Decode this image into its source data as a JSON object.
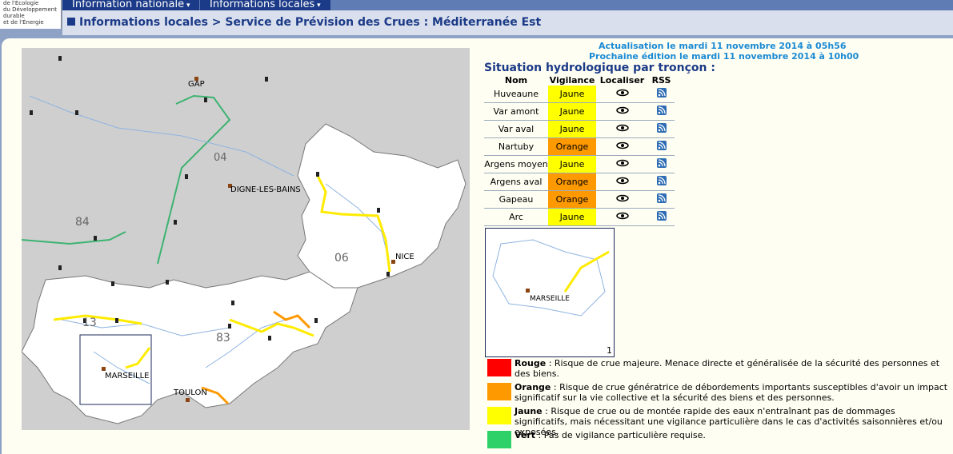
{
  "logo": [
    "de l'Écologie",
    "du Développement",
    "durable",
    "et de l'Énergie"
  ],
  "nav": [
    "Information nationale",
    "Informations locales"
  ],
  "breadcrumb": "Informations locales > Service de Prévision des Crues : Méditerranée Est",
  "update": [
    "Actualisation le mardi 11 novembre 2014 à 05h56",
    "Prochaine édition le mardi 11 novembre 2014 à 10h00"
  ],
  "table": {
    "title": "Situation hydrologique par tronçon :",
    "headers": [
      "Nom",
      "Vigilance",
      "Localiser",
      "RSS"
    ],
    "rows": [
      [
        "Huveaune",
        "Jaune"
      ],
      [
        "Var amont",
        "Jaune"
      ],
      [
        "Var aval",
        "Jaune"
      ],
      [
        "Nartuby",
        "Orange"
      ],
      [
        "Argens moyen",
        "Jaune"
      ],
      [
        "Argens aval",
        "Orange"
      ],
      [
        "Gapeau",
        "Orange"
      ],
      [
        "Arc",
        "Jaune"
      ]
    ]
  },
  "map": {
    "labels": [
      "GAP",
      "04",
      "DIGNE-LES-BAINS",
      "84",
      "06",
      "NICE",
      "13",
      "83",
      "MARSEILLE",
      "TOULON"
    ]
  },
  "inset": {
    "label": "MARSEILLE",
    "number": "1"
  },
  "legend": [
    {
      "term": "Rouge",
      "color": "#ff0000",
      "text": " : Risque de crue majeure. Menace directe et généralisée de la sécurité des personnes et des biens."
    },
    {
      "term": "Orange",
      "color": "#ff9900",
      "text": " : Risque de crue génératrice de débordements importants susceptibles d'avoir un impact significatif sur la vie collective et la sécurité des biens et des personnes."
    },
    {
      "term": "Jaune",
      "color": "#ffff00",
      "text": " : Risque de crue ou de montée rapide des eaux n'entraînant pas de dommages significatifs, mais nécessitant une vigilance particulière dans le cas d'activités saisonnières et/ou exposées."
    },
    {
      "term": "Vert",
      "color": "#2ed168",
      "text": " : Pas de vigilance particulière requise."
    }
  ]
}
